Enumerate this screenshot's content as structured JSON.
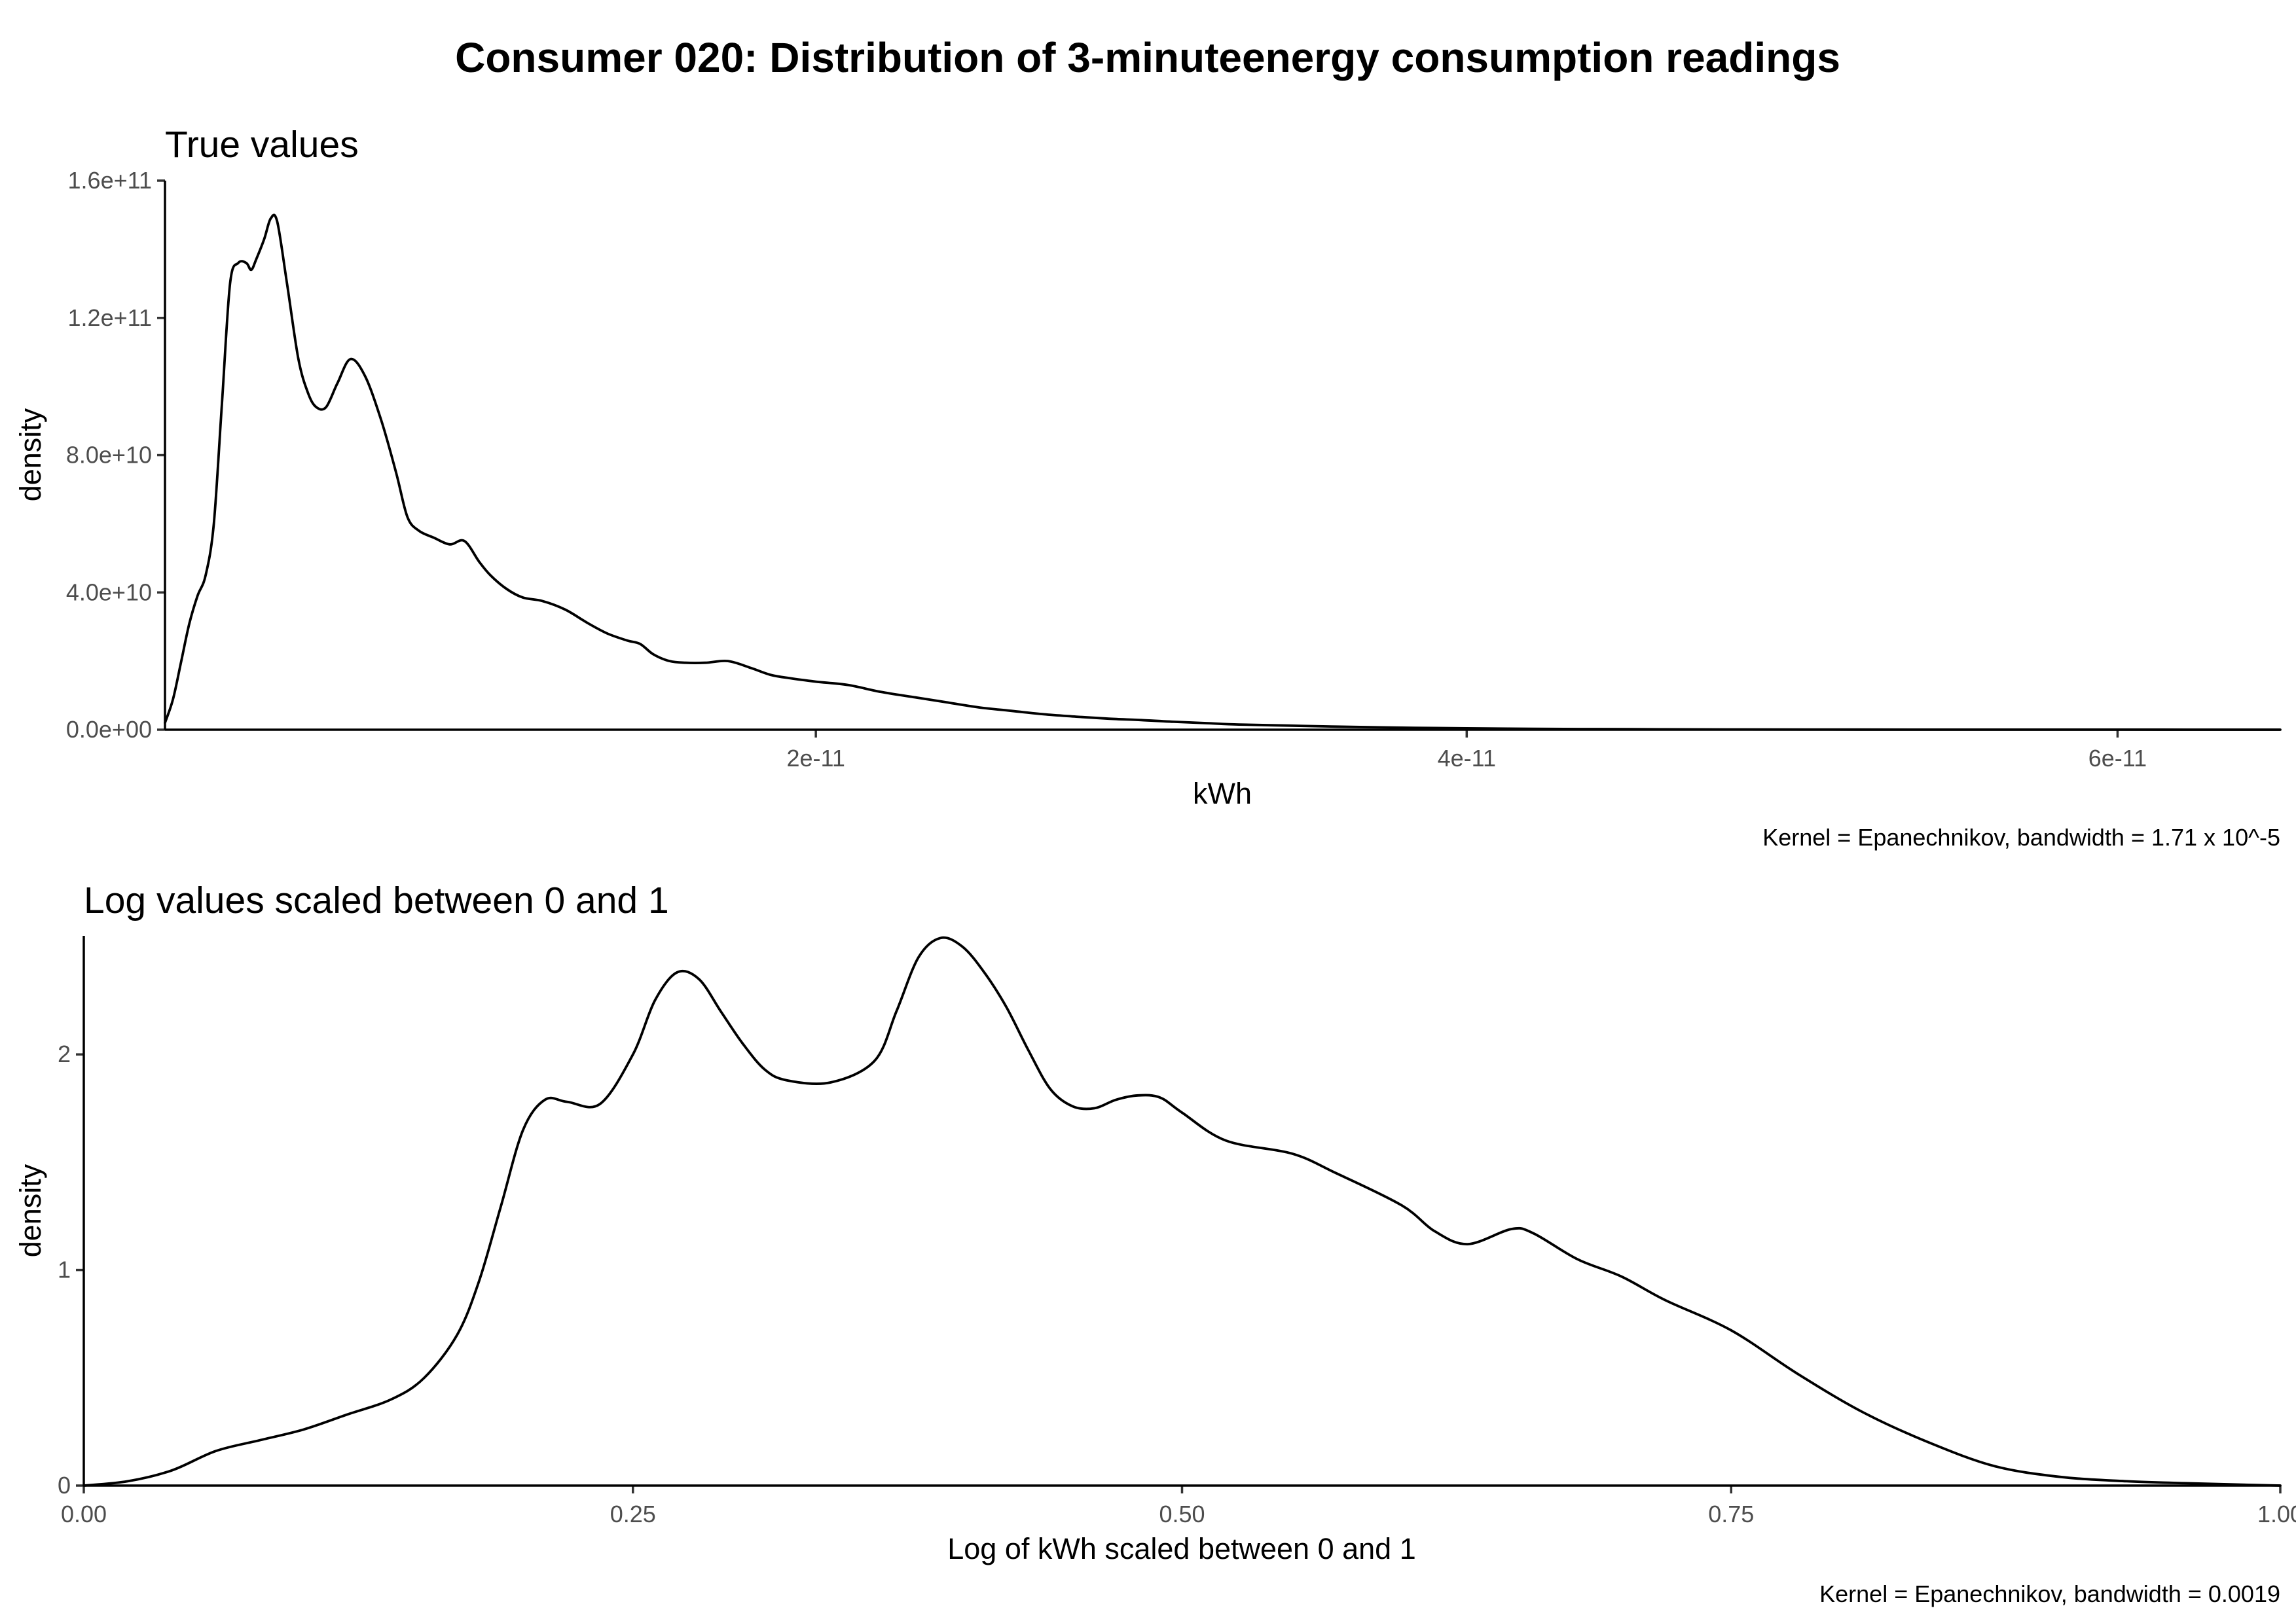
{
  "figure": {
    "title": "Consumer 020: Distribution of 3-minuteenergy consumption readings"
  },
  "chart_data": [
    {
      "type": "line",
      "subtitle": "True values",
      "xlabel": "kWh",
      "ylabel": "density",
      "caption": "Kernel = Epanechnikov, bandwidth = 1.71 x 10^-5",
      "grid": false,
      "legend": "none",
      "xlim": [
        0,
        6.5e-11
      ],
      "ylim": [
        0,
        160000000000.0
      ],
      "x_ticks": [
        {
          "value": 2e-11,
          "label": "2e-11"
        },
        {
          "value": 4e-11,
          "label": "4e-11"
        },
        {
          "value": 6e-11,
          "label": "6e-11"
        }
      ],
      "y_ticks": [
        {
          "value": 0,
          "label": "0.0e+00"
        },
        {
          "value": 40000000000.0,
          "label": "4.0e+10"
        },
        {
          "value": 80000000000.0,
          "label": "8.0e+10"
        },
        {
          "value": 120000000000.0,
          "label": "1.2e+11"
        },
        {
          "value": 160000000000.0,
          "label": "1.6e+11"
        }
      ],
      "series": [
        {
          "color": "#000000",
          "x": [
            0,
            2.5e-13,
            5e-13,
            7.5e-13,
            1e-12,
            1.25e-12,
            1.5e-12,
            1.75e-12,
            2e-12,
            2.25e-12,
            2.5e-12,
            2.65e-12,
            2.8e-12,
            3.05e-12,
            3.25e-12,
            3.45e-12,
            3.75e-12,
            4.1e-12,
            4.4e-12,
            4.65e-12,
            4.95e-12,
            5.3e-12,
            5.7e-12,
            6.15e-12,
            6.65e-12,
            7.1e-12,
            7.45e-12,
            7.8e-12,
            8.25e-12,
            8.75e-12,
            9.2e-12,
            9.65e-12,
            1e-11,
            1.05e-11,
            1.1e-11,
            1.16e-11,
            1.23e-11,
            1.3e-11,
            1.36e-11,
            1.42e-11,
            1.46e-11,
            1.5e-11,
            1.55e-11,
            1.6e-11,
            1.66e-11,
            1.73e-11,
            1.8e-11,
            1.86e-11,
            1.92e-11,
            2e-11,
            2.1e-11,
            2.2e-11,
            2.3e-11,
            2.4e-11,
            2.5e-11,
            2.6e-11,
            2.7e-11,
            2.8e-11,
            2.9e-11,
            3e-11,
            3.1e-11,
            3.2e-11,
            3.3e-11,
            3.45e-11,
            3.6e-11,
            3.8e-11,
            4e-11,
            4.2e-11,
            4.5e-11,
            4.8e-11,
            5.2e-11,
            5.6e-11,
            6e-11,
            6.5e-11
          ],
          "y": [
            2000000000.0,
            9000000000.0,
            20000000000.0,
            31000000000.0,
            39000000000.0,
            45000000000.0,
            60000000000.0,
            95000000000.0,
            130000000000.0,
            136000000000.0,
            136000000000.0,
            134000000000.0,
            137000000000.0,
            143000000000.0,
            149000000000.0,
            148000000000.0,
            130000000000.0,
            108000000000.0,
            98000000000.0,
            94000000000.0,
            94000000000.0,
            101000000000.0,
            108000000000.0,
            103000000000.0,
            90000000000.0,
            75000000000.0,
            62000000000.0,
            58000000000.0,
            56000000000.0,
            54000000000.0,
            55000000000.0,
            49000000000.0,
            45000000000.0,
            41000000000.0,
            38500000000.0,
            37500000000.0,
            35000000000.0,
            31000000000.0,
            28000000000.0,
            26000000000.0,
            25000000000.0,
            22000000000.0,
            20000000000.0,
            19500000000.0,
            19500000000.0,
            20000000000.0,
            18000000000.0,
            16000000000.0,
            15000000000.0,
            14000000000.0,
            13000000000.0,
            11000000000.0,
            9500000000.0,
            8000000000.0,
            6500000000.0,
            5500000000.0,
            4500000000.0,
            3800000000.0,
            3200000000.0,
            2800000000.0,
            2300000000.0,
            1900000000.0,
            1500000000.0,
            1200000000.0,
            900000000.0,
            600000000.0,
            400000000.0,
            250000000.0,
            150000000.0,
            80000000.0,
            40000000.0,
            20000000.0,
            10000000.0,
            0
          ]
        }
      ]
    },
    {
      "type": "line",
      "subtitle": "Log values scaled between 0 and 1",
      "xlabel": "Log of kWh scaled between 0 and 1",
      "ylabel": "density",
      "caption": "Kernel = Epanechnikov, bandwidth = 0.0019",
      "grid": false,
      "legend": "none",
      "xlim": [
        0,
        1
      ],
      "ylim": [
        0,
        2.55
      ],
      "x_ticks": [
        {
          "value": 0,
          "label": "0.00"
        },
        {
          "value": 0.25,
          "label": "0.25"
        },
        {
          "value": 0.5,
          "label": "0.50"
        },
        {
          "value": 0.75,
          "label": "0.75"
        },
        {
          "value": 1,
          "label": "1.00"
        }
      ],
      "y_ticks": [
        {
          "value": 0,
          "label": "0"
        },
        {
          "value": 1,
          "label": "1"
        },
        {
          "value": 2,
          "label": "2"
        }
      ],
      "series": [
        {
          "color": "#000000",
          "x": [
            0,
            0.02,
            0.04,
            0.06,
            0.08,
            0.1,
            0.12,
            0.14,
            0.155,
            0.17,
            0.18,
            0.19,
            0.2,
            0.21,
            0.22,
            0.235,
            0.25,
            0.26,
            0.27,
            0.28,
            0.29,
            0.3,
            0.31,
            0.32,
            0.34,
            0.36,
            0.37,
            0.38,
            0.39,
            0.4,
            0.41,
            0.42,
            0.43,
            0.44,
            0.45,
            0.46,
            0.47,
            0.48,
            0.49,
            0.5,
            0.52,
            0.55,
            0.57,
            0.6,
            0.615,
            0.63,
            0.65,
            0.66,
            0.68,
            0.7,
            0.72,
            0.75,
            0.78,
            0.81,
            0.84,
            0.87,
            0.9,
            0.93,
            0.96,
            1.0
          ],
          "y": [
            0,
            0.02,
            0.07,
            0.16,
            0.21,
            0.26,
            0.33,
            0.4,
            0.5,
            0.7,
            0.95,
            1.3,
            1.65,
            1.79,
            1.78,
            1.77,
            2.0,
            2.25,
            2.38,
            2.35,
            2.2,
            2.05,
            1.93,
            1.88,
            1.87,
            1.97,
            2.2,
            2.45,
            2.54,
            2.5,
            2.38,
            2.22,
            2.02,
            1.84,
            1.76,
            1.75,
            1.79,
            1.81,
            1.8,
            1.73,
            1.6,
            1.54,
            1.45,
            1.3,
            1.18,
            1.12,
            1.19,
            1.17,
            1.05,
            0.97,
            0.86,
            0.72,
            0.52,
            0.34,
            0.2,
            0.09,
            0.04,
            0.02,
            0.01,
            0
          ]
        }
      ]
    }
  ]
}
